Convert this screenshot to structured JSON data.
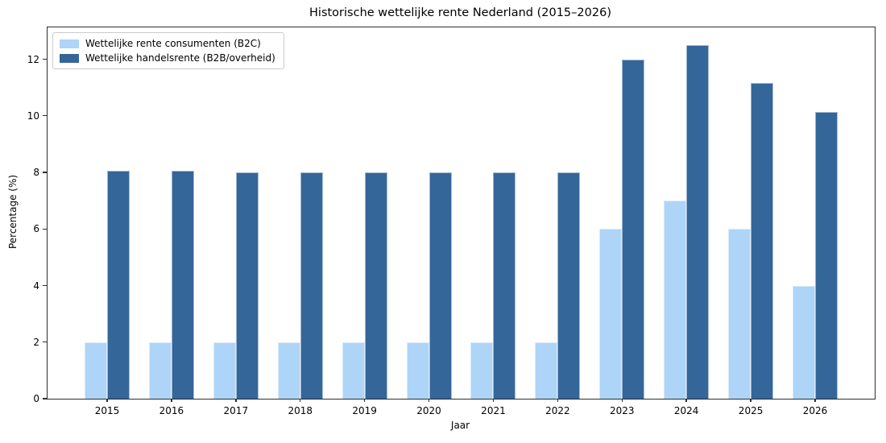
{
  "title": "Historische wettelijke rente Nederland (2015–2026)",
  "chart_data": {
    "type": "bar",
    "categories": [
      "2015",
      "2016",
      "2017",
      "2018",
      "2019",
      "2020",
      "2021",
      "2022",
      "2023",
      "2024",
      "2025",
      "2026"
    ],
    "series": [
      {
        "name": "Wettelijke rente consumenten (B2C)",
        "color": "#aed4f7",
        "values": [
          2.0,
          2.0,
          2.0,
          2.0,
          2.0,
          2.0,
          2.0,
          2.0,
          6.0,
          7.0,
          6.0,
          4.0
        ]
      },
      {
        "name": "Wettelijke handelsrente (B2B/overheid)",
        "color": "#346699",
        "values": [
          8.05,
          8.05,
          8.0,
          8.0,
          8.0,
          8.0,
          8.0,
          8.0,
          12.0,
          12.5,
          11.15,
          10.15
        ]
      }
    ],
    "title": "Historische wettelijke rente Nederland (2015–2026)",
    "xlabel": "Jaar",
    "ylabel": "Percentage (%)",
    "ylim": [
      0,
      13.125
    ],
    "yticks": [
      0,
      2,
      4,
      6,
      8,
      10,
      12
    ],
    "grid": false,
    "legend_position": "upper left"
  }
}
